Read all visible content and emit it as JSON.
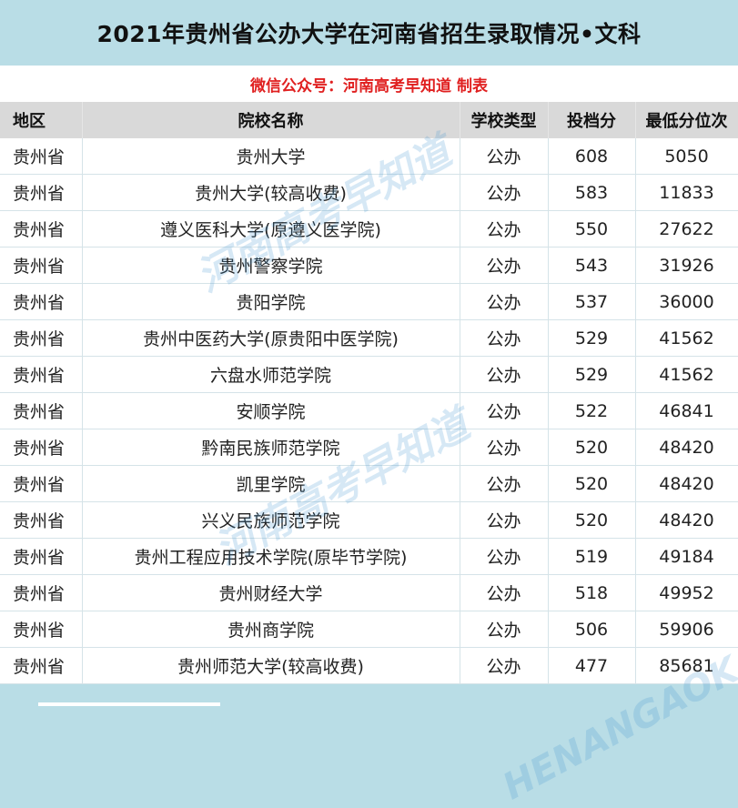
{
  "header": {
    "title": "2021年贵州省公办大学在河南省招生录取情况•文科",
    "subtitle": "微信公众号：河南高考早知道 制表"
  },
  "table": {
    "columns": [
      "地区",
      "院校名称",
      "学校类型",
      "投档分",
      "最低分位次"
    ],
    "rows": [
      {
        "region": "贵州省",
        "school": "贵州大学",
        "type": "公办",
        "score": "608",
        "rank": "5050"
      },
      {
        "region": "贵州省",
        "school": "贵州大学(较高收费)",
        "type": "公办",
        "score": "583",
        "rank": "11833"
      },
      {
        "region": "贵州省",
        "school": "遵义医科大学(原遵义医学院)",
        "type": "公办",
        "score": "550",
        "rank": "27622"
      },
      {
        "region": "贵州省",
        "school": "贵州警察学院",
        "type": "公办",
        "score": "543",
        "rank": "31926"
      },
      {
        "region": "贵州省",
        "school": "贵阳学院",
        "type": "公办",
        "score": "537",
        "rank": "36000"
      },
      {
        "region": "贵州省",
        "school": "贵州中医药大学(原贵阳中医学院)",
        "type": "公办",
        "score": "529",
        "rank": "41562"
      },
      {
        "region": "贵州省",
        "school": "六盘水师范学院",
        "type": "公办",
        "score": "529",
        "rank": "41562"
      },
      {
        "region": "贵州省",
        "school": "安顺学院",
        "type": "公办",
        "score": "522",
        "rank": "46841"
      },
      {
        "region": "贵州省",
        "school": "黔南民族师范学院",
        "type": "公办",
        "score": "520",
        "rank": "48420"
      },
      {
        "region": "贵州省",
        "school": "凯里学院",
        "type": "公办",
        "score": "520",
        "rank": "48420"
      },
      {
        "region": "贵州省",
        "school": "兴义民族师范学院",
        "type": "公办",
        "score": "520",
        "rank": "48420"
      },
      {
        "region": "贵州省",
        "school": "贵州工程应用技术学院(原毕节学院)",
        "type": "公办",
        "score": "519",
        "rank": "49184"
      },
      {
        "region": "贵州省",
        "school": "贵州财经大学",
        "type": "公办",
        "score": "518",
        "rank": "49952"
      },
      {
        "region": "贵州省",
        "school": "贵州商学院",
        "type": "公办",
        "score": "506",
        "rank": "59906"
      },
      {
        "region": "贵州省",
        "school": "贵州师范大学(较高收费)",
        "type": "公办",
        "score": "477",
        "rank": "85681"
      }
    ]
  },
  "watermark": {
    "text": "河南高考早知道",
    "pinyin": "HENANGAOKAOZAOZHIDAO"
  },
  "colors": {
    "band_bg": "#b9dde6",
    "header_row_bg": "#d9d9d9",
    "subtitle_red": "#e02020",
    "grid_line": "#d5e3e8"
  }
}
